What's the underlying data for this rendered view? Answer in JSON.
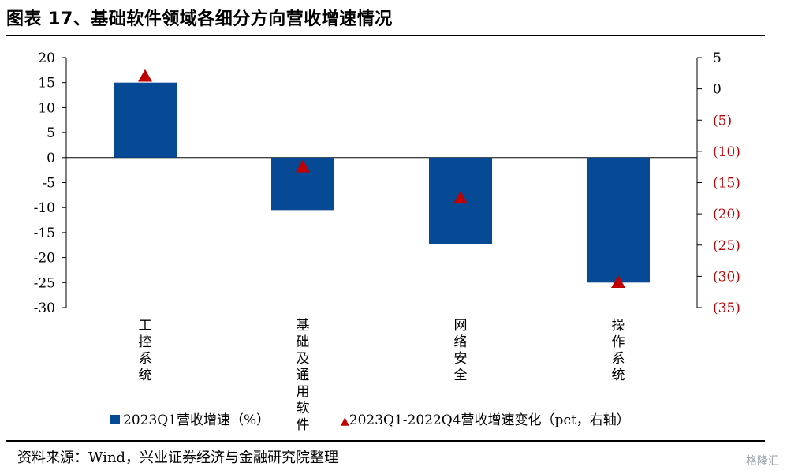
{
  "title": "图表 17、基础软件领域各细分方向营收增速情况",
  "source": "资料来源：Wind，兴业证券经济与金融研究院整理",
  "watermark": "格隆汇",
  "colors": {
    "bar": "#064a96",
    "marker": "#c00000",
    "right_axis_text": "#c00000"
  },
  "chart_data": {
    "type": "bar",
    "categories": [
      "工控系统",
      "基础及通用软件",
      "网络安全",
      "操作系统"
    ],
    "series": [
      {
        "name": "2023Q1营收增速（%）",
        "type": "bar",
        "axis": "left",
        "values": [
          15,
          -10.5,
          -17.3,
          -25
        ]
      },
      {
        "name": "2023Q1-2022Q4营收增速变化（pct，右轴）",
        "type": "marker",
        "axis": "right",
        "values": [
          2,
          -12.5,
          -17.5,
          -31
        ]
      }
    ],
    "left_axis": {
      "range": [
        -30,
        20
      ],
      "ticks": [
        20,
        15,
        10,
        5,
        0,
        -5,
        -10,
        -15,
        -20,
        -25,
        -30
      ],
      "tick_labels": [
        "20",
        "15",
        "10",
        "5",
        "0",
        "-5",
        "-10",
        "-15",
        "-20",
        "-25",
        "-30"
      ]
    },
    "right_axis": {
      "range": [
        -35,
        5
      ],
      "ticks": [
        5,
        0,
        -5,
        -10,
        -15,
        -20,
        -25,
        -30,
        -35
      ],
      "tick_labels": [
        "5",
        "0",
        "(5)",
        "(10)",
        "(15)",
        "(20)",
        "(25)",
        "(30)",
        "(35)"
      ]
    },
    "legend": [
      {
        "label": "2023Q1营收增速（%）",
        "marker": "square"
      },
      {
        "label": "▲2023Q1-2022Q4营收增速变化（pct，右轴）",
        "marker": "triangle"
      }
    ],
    "grid": false,
    "legend_position": "bottom"
  }
}
